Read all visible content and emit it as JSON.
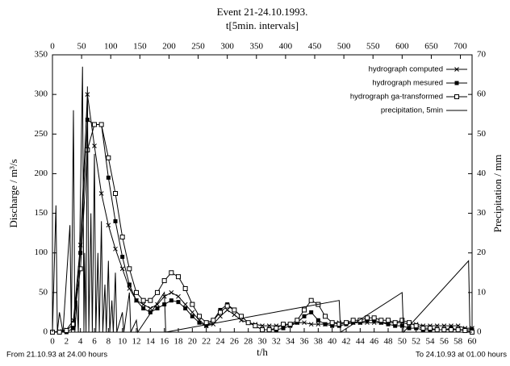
{
  "chart_data": {
    "type": "line",
    "title": "Event 21-24.10.1993.",
    "x2_label": "t[5min. intervals]",
    "x_label": "t/h",
    "y_label": "Discharge / m³/s",
    "y2_label": "Precipitation / mm",
    "annotations": [
      "From 21.10.93 at 24.00 hours",
      "To 24.10.93 at 01.00 hours"
    ],
    "legend": "upper right",
    "xlim": [
      0,
      60
    ],
    "xticks": [
      0,
      2,
      4,
      6,
      8,
      10,
      12,
      14,
      16,
      18,
      20,
      22,
      24,
      26,
      28,
      30,
      32,
      34,
      36,
      38,
      40,
      42,
      44,
      46,
      48,
      50,
      52,
      54,
      56,
      58,
      60
    ],
    "x2lim": [
      0,
      720
    ],
    "x2ticks": [
      0,
      50,
      100,
      150,
      200,
      250,
      300,
      350,
      400,
      450,
      500,
      550,
      600,
      650,
      700
    ],
    "ylim": [
      0,
      350
    ],
    "yticks": [
      0,
      50,
      100,
      150,
      200,
      250,
      300,
      350
    ],
    "y2lim": [
      0,
      70
    ],
    "y2ticks": [
      0,
      10,
      20,
      30,
      40,
      50,
      60,
      70
    ],
    "x": [
      0,
      1,
      2,
      3,
      4,
      5,
      6,
      7,
      8,
      9,
      10,
      11,
      12,
      13,
      14,
      15,
      16,
      17,
      18,
      19,
      20,
      21,
      22,
      23,
      24,
      25,
      26,
      27,
      28,
      29,
      30,
      31,
      32,
      33,
      34,
      35,
      36,
      37,
      38,
      39,
      40,
      41,
      42,
      43,
      44,
      45,
      46,
      47,
      48,
      49,
      50,
      51,
      52,
      53,
      54,
      55,
      56,
      57,
      58,
      59,
      60
    ],
    "series": [
      {
        "name": "hydrograph computed",
        "color": "#000000",
        "marker": "x",
        "values": [
          0,
          1,
          3,
          15,
          110,
          300,
          235,
          175,
          135,
          105,
          80,
          55,
          40,
          35,
          30,
          35,
          45,
          50,
          45,
          35,
          25,
          15,
          8,
          10,
          20,
          28,
          22,
          15,
          12,
          10,
          8,
          8,
          8,
          8,
          10,
          12,
          12,
          10,
          10,
          10,
          12,
          12,
          12,
          12,
          12,
          12,
          12,
          12,
          12,
          12,
          12,
          10,
          10,
          8,
          8,
          8,
          8,
          8,
          8,
          5,
          5
        ]
      },
      {
        "name": "hydrograph mesured",
        "color": "#000000",
        "marker": "filled-square",
        "values": [
          0,
          0,
          0,
          5,
          100,
          268,
          262,
          262,
          195,
          140,
          95,
          60,
          40,
          30,
          25,
          30,
          35,
          40,
          38,
          30,
          20,
          12,
          8,
          15,
          28,
          35,
          28,
          20,
          12,
          8,
          3,
          3,
          3,
          5,
          8,
          12,
          20,
          25,
          15,
          10,
          8,
          8,
          10,
          12,
          12,
          15,
          15,
          12,
          10,
          8,
          8,
          5,
          5,
          3,
          3,
          3,
          3,
          5,
          3,
          3,
          3
        ]
      },
      {
        "name": "hydrograph ga-transformed",
        "color": "#000000",
        "marker": "open-square",
        "values": [
          0,
          0,
          2,
          10,
          80,
          230,
          262,
          262,
          220,
          175,
          120,
          80,
          50,
          40,
          40,
          50,
          65,
          75,
          70,
          55,
          35,
          20,
          12,
          15,
          25,
          33,
          28,
          20,
          12,
          8,
          3,
          3,
          5,
          10,
          10,
          15,
          28,
          40,
          35,
          20,
          12,
          10,
          12,
          15,
          15,
          18,
          18,
          15,
          15,
          12,
          15,
          12,
          8,
          5,
          5,
          3,
          3,
          3,
          3,
          2,
          0
        ]
      },
      {
        "name": "precipitation, 5min",
        "color": "#000000",
        "marker": "none",
        "axis": "y2",
        "x": [
          0,
          0.5,
          0.7,
          1,
          1.5,
          2.5,
          2.7,
          3,
          3.2,
          3.5,
          3.7,
          4.3,
          4.5,
          4.6,
          4.8,
          5,
          5.2,
          5.5,
          5.7,
          6,
          6.2,
          6.5,
          6.7,
          7,
          7.2,
          7.5,
          7.7,
          8,
          8.2,
          8.5,
          8.7,
          9,
          9.2,
          10,
          10.2,
          11,
          11.2,
          12,
          12.2,
          16,
          16.2,
          41,
          41.2,
          50,
          50.2,
          59.5,
          59.7,
          60
        ],
        "values": [
          0,
          32,
          0,
          5,
          0,
          27,
          0,
          56,
          0,
          8,
          0,
          67,
          0,
          20,
          0,
          62,
          0,
          30,
          0,
          45,
          0,
          20,
          0,
          28,
          0,
          12,
          0,
          18,
          0,
          8,
          0,
          15,
          0,
          5,
          0,
          10,
          0,
          3,
          0,
          10,
          0,
          8,
          0,
          10,
          0,
          18,
          0,
          0
        ]
      }
    ]
  }
}
